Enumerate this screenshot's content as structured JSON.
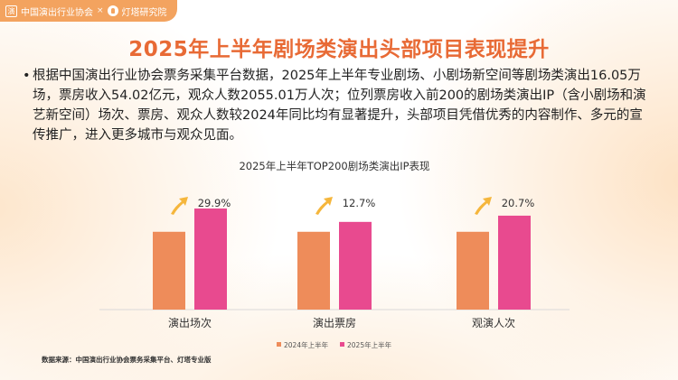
{
  "header": {
    "org_name": "中国演出行业协会",
    "org_seal": "演",
    "separator": "×",
    "brand_name": "灯塔研究院"
  },
  "title": "2025年上半年剧场类演出头部项目表现提升",
  "paragraph": "根据中国演出行业协会票务采集平台数据，2025年上半年专业剧场、小剧场新空间等剧场类演出16.05万场，票房收入54.02亿元，观众人数2055.01万人次；位列票房收入前200的剧场类演出IP（含小剧场和演艺新空间）场次、票房、观众人数较2024年同比均有显著提升，头部项目凭借优秀的内容制作、多元的宣传推广，进入更多城市与观众见面。",
  "bullet": "•",
  "source": "数据来源：中国演出行业协会票务采集平台、灯塔专业版",
  "chart_data": {
    "type": "bar",
    "title": "2025年上半年TOP200剧场类演出IP表现",
    "categories": [
      "演出场次",
      "演出票房",
      "观演人次"
    ],
    "series": [
      {
        "name": "2024年上半年",
        "color": "#ee8c5a",
        "values": [
          100,
          100,
          100
        ]
      },
      {
        "name": "2025年上半年",
        "color": "#e84a8f",
        "values": [
          129.9,
          112.7,
          120.7
        ]
      }
    ],
    "growth_labels": [
      "29.9%",
      "12.7%",
      "20.7%"
    ],
    "ylim": [
      0,
      140
    ],
    "legend_position": "bottom",
    "grid": false,
    "arrow_color": "#f5b63c"
  }
}
